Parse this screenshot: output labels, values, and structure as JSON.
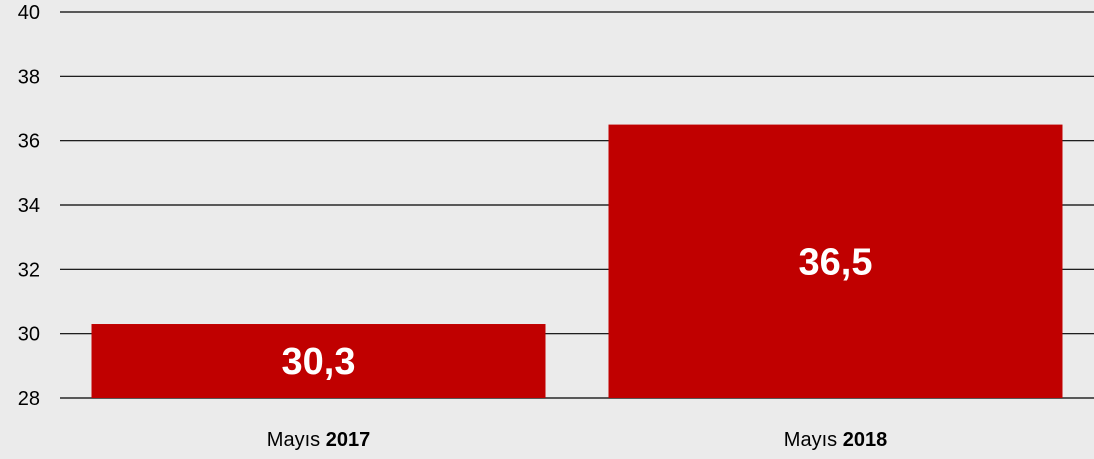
{
  "chart_data": {
    "type": "bar",
    "categories": [
      {
        "prefix": "Mayıs",
        "year": "2017"
      },
      {
        "prefix": "Mayıs",
        "year": "2018"
      }
    ],
    "values": [
      30.3,
      36.5
    ],
    "data_labels": [
      "30,3",
      "36,5"
    ],
    "ylim": [
      28,
      40
    ],
    "yticks": [
      {
        "value": 28,
        "label": "28"
      },
      {
        "value": 30,
        "label": "30"
      },
      {
        "value": 32,
        "label": "32"
      },
      {
        "value": 34,
        "label": "34"
      },
      {
        "value": 36,
        "label": "36"
      },
      {
        "value": 38,
        "label": "38"
      },
      {
        "value": 40,
        "label": "40"
      }
    ],
    "grid": true,
    "bar_color": "#c00000",
    "background": "#ebebeb"
  }
}
